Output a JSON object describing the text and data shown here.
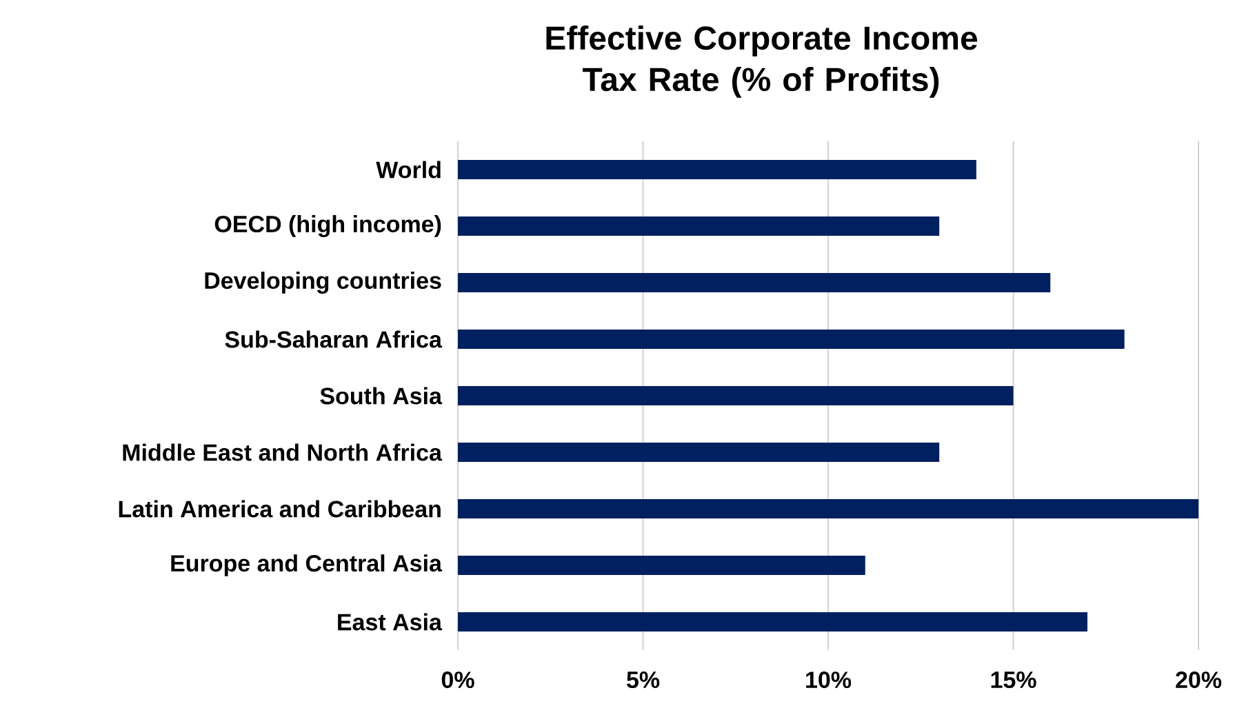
{
  "chart_data": {
    "type": "bar",
    "orientation": "horizontal",
    "title": "Effective Corporate Income Tax Rate (% of Profits)",
    "categories": [
      "World",
      "OECD (high income)",
      "Developing countries",
      "Sub-Saharan Africa",
      "South Asia",
      "Middle East and North Africa",
      "Latin America and Caribbean",
      "Europe and Central Asia",
      "East Asia"
    ],
    "values": [
      14,
      13,
      16,
      18,
      15,
      13,
      20,
      11,
      17
    ],
    "color": "#002060",
    "xlim": [
      0,
      20
    ],
    "xticks": [
      {
        "value": 0,
        "label": "0%"
      },
      {
        "value": 5,
        "label": "5%"
      },
      {
        "value": 10,
        "label": "10%"
      },
      {
        "value": 15,
        "label": "15%"
      },
      {
        "value": 20,
        "label": "20%"
      }
    ],
    "grid": "x"
  }
}
